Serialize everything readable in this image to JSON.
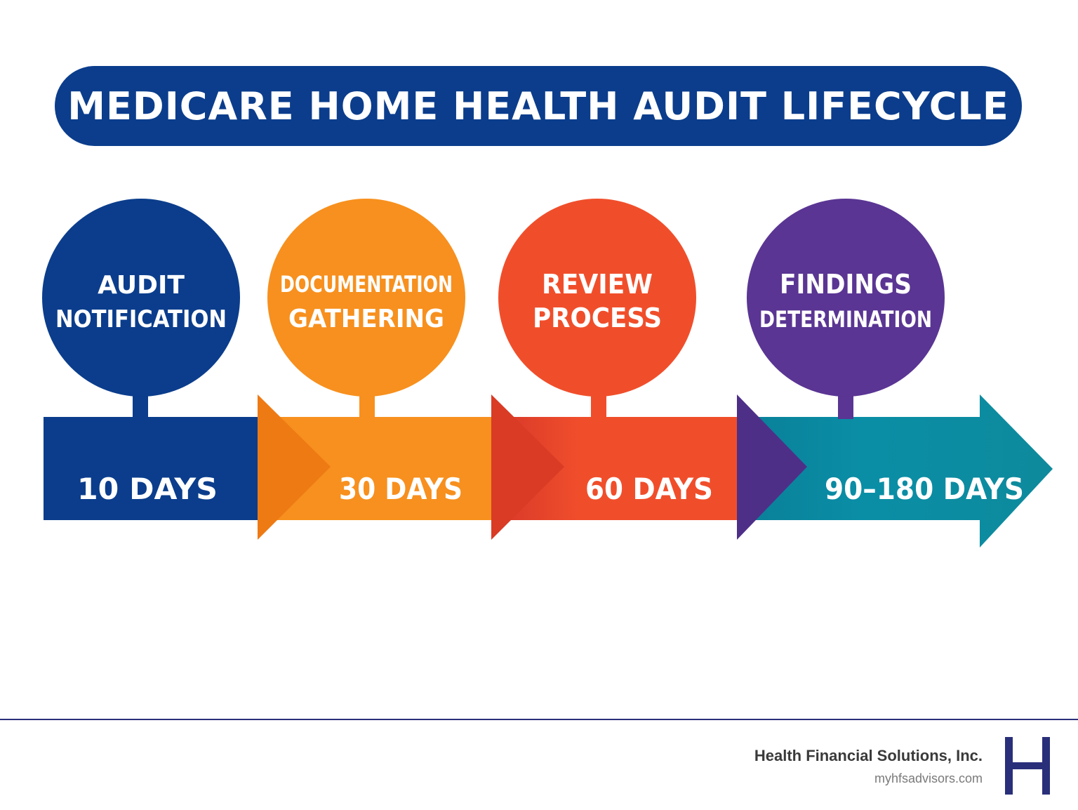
{
  "title": "MEDICARE HOME HEALTH AUDIT LIFECYCLE",
  "colors": {
    "title_bg": "#0b3d8c",
    "footer_rule": "#2a2f7a",
    "logo": "#2a2f7a"
  },
  "stages": [
    {
      "line1": "AUDIT",
      "line2": "NOTIFICATION",
      "duration": "10 DAYS",
      "color": "#0b3d8c",
      "color_dark": "#0a3680"
    },
    {
      "line1": "DOCUMENTATION",
      "line2": "GATHERING",
      "duration": "30 DAYS",
      "color": "#f7901e",
      "color_dark": "#ee7a14"
    },
    {
      "line1": "REVIEW",
      "line2": "PROCESS",
      "duration": "60 DAYS",
      "color": "#f04e2b",
      "color_dark": "#d93b25"
    },
    {
      "line1": "FINDINGS",
      "line2": "DETERMINATION",
      "duration": "90–180 DAYS",
      "color": "#5a3593",
      "color_dark": "#4e2f88",
      "band_color": "#08889e"
    }
  ],
  "footer": {
    "company": "Health Financial Solutions, Inc.",
    "url": "myhfsadvisors.com",
    "logo_letter": "H"
  }
}
